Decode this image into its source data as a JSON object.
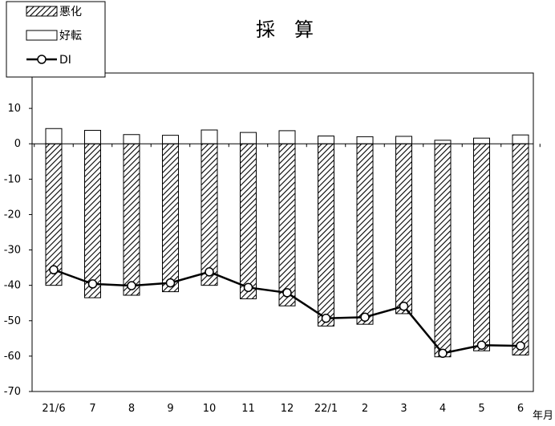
{
  "chart_data": {
    "type": "bar",
    "title": "採　算",
    "xlabel": "年月",
    "ylabel": "",
    "ylim": [
      -70,
      20
    ],
    "yticks": [
      10,
      0,
      -10,
      -20,
      -30,
      -40,
      -50,
      -60,
      -70
    ],
    "categories": [
      "21/6",
      "7",
      "8",
      "9",
      "10",
      "11",
      "12",
      "22/1",
      "2",
      "3",
      "4",
      "5",
      "6"
    ],
    "series": [
      {
        "name": "悪化",
        "kind": "bar",
        "style": "hatched",
        "values": [
          -40,
          -43.5,
          -42.8,
          -41.8,
          -40,
          -43.8,
          -45.8,
          -51.5,
          -51,
          -48,
          -60.2,
          -58.5,
          -59.7
        ]
      },
      {
        "name": "好転",
        "kind": "bar",
        "style": "white",
        "values": [
          4.3,
          3.8,
          2.6,
          2.4,
          3.9,
          3.2,
          3.7,
          2.2,
          2,
          2.1,
          1,
          1.6,
          2.5
        ]
      },
      {
        "name": "DI",
        "kind": "line",
        "marker": "circle",
        "values": [
          -35.6,
          -39.6,
          -40.1,
          -39.3,
          -36.2,
          -40.6,
          -42.1,
          -49.3,
          -49,
          -45.9,
          -59.2,
          -56.9,
          -57.1
        ]
      }
    ],
    "legend_position": "top-left",
    "grid": false
  }
}
